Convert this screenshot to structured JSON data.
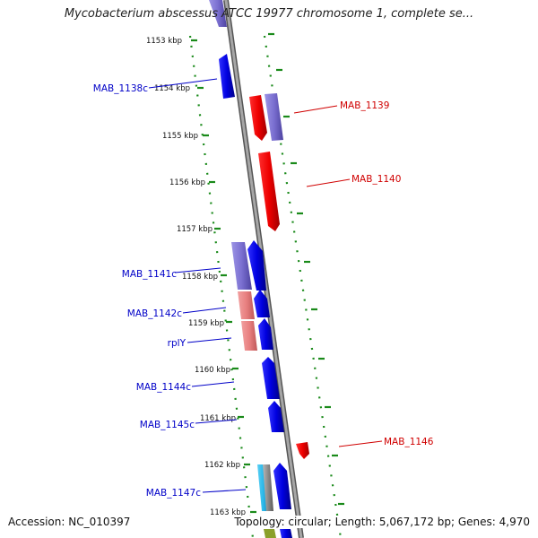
{
  "title": "Mycobacterium abscessus ATCC 19977 chromosome 1, complete se...",
  "accession": "Accession: NC_010397",
  "topology": "Topology: circular; Length: 5,067,172 bp; Genes: 4,970",
  "colors": {
    "forward_cds": "#0000e0",
    "forward_cds_light": "#7a6fd0",
    "reverse_cds": "#ee0000",
    "reverse_cds_light": "#e88080",
    "rna": "#29b6e8",
    "backbone": "#8a8a8a",
    "ticks": "#1a8a1a",
    "label_blue": "#0000c8",
    "label_red": "#d00000"
  },
  "ruler": [
    {
      "label": "1153 kbp"
    },
    {
      "label": "1154 kbp"
    },
    {
      "label": "1155 kbp"
    },
    {
      "label": "1156 kbp"
    },
    {
      "label": "1157 kbp"
    },
    {
      "label": "1158 kbp"
    },
    {
      "label": "1159 kbp"
    },
    {
      "label": "1160 kbp"
    },
    {
      "label": "1161 kbp"
    },
    {
      "label": "1162 kbp"
    },
    {
      "label": "1163 kbp"
    }
  ],
  "gene_labels": [
    {
      "name": "MAB_1138c",
      "strand": "left"
    },
    {
      "name": "MAB_1139",
      "strand": "right"
    },
    {
      "name": "MAB_1140",
      "strand": "right"
    },
    {
      "name": "MAB_1141c",
      "strand": "left"
    },
    {
      "name": "MAB_1142c",
      "strand": "left"
    },
    {
      "name": "rplY",
      "strand": "left"
    },
    {
      "name": "MAB_1144c",
      "strand": "left"
    },
    {
      "name": "MAB_1145c",
      "strand": "left"
    },
    {
      "name": "MAB_1146",
      "strand": "right"
    },
    {
      "name": "MAB_1147c",
      "strand": "left"
    }
  ]
}
